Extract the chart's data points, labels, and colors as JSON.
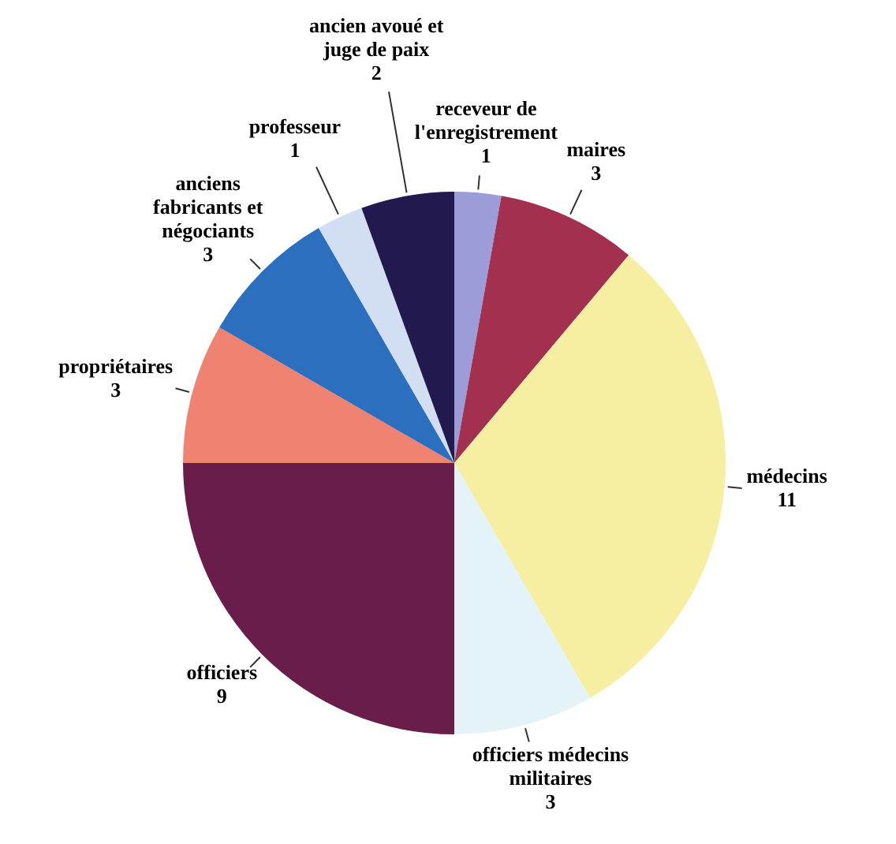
{
  "chart_data": {
    "type": "pie",
    "categories": [
      "receveur de l'enregistrement",
      "maires",
      "médecins",
      "officiers médecins militaires",
      "officiers",
      "propriétaires",
      "anciens fabricants et négociants",
      "professeur",
      "ancien avoué et juge de paix"
    ],
    "values": [
      1,
      3,
      11,
      3,
      9,
      3,
      3,
      1,
      2
    ],
    "colors": [
      "#9c9cd8",
      "#a2304e",
      "#f6efa2",
      "#e4f3f7",
      "#6a1c4a",
      "#f08272",
      "#2c6fbf",
      "#d2def2",
      "#22194f"
    ],
    "data_labels": true
  }
}
